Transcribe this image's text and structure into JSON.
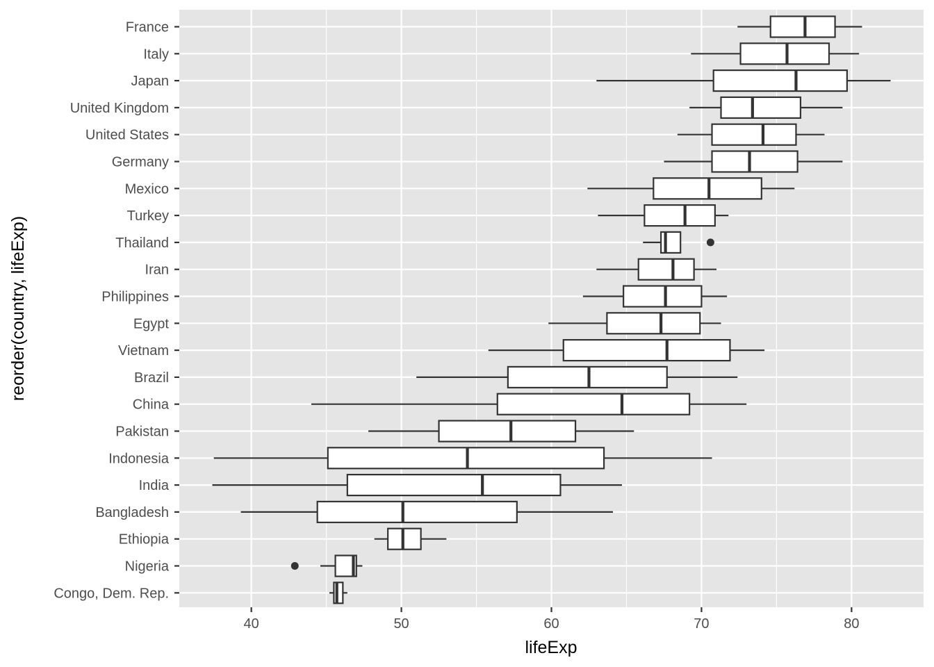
{
  "chart_data": {
    "type": "boxplot",
    "orientation": "horizontal",
    "xlabel": "lifeExp",
    "ylabel": "reorder(country, lifeExp)",
    "xlim": [
      35.2,
      84.8
    ],
    "xticks": [
      40,
      50,
      60,
      70,
      80
    ],
    "grid": true,
    "background": "#e5e5e5",
    "box_fill": "#ffffff",
    "line_color": "#333333",
    "grid_major_color": "#ffffff",
    "categories": [
      {
        "name": "France",
        "min": 72.4,
        "q1": 74.6,
        "median": 76.9,
        "q3": 78.9,
        "max": 80.7,
        "outliers": []
      },
      {
        "name": "Italy",
        "min": 69.3,
        "q1": 72.6,
        "median": 75.7,
        "q3": 78.5,
        "max": 80.5,
        "outliers": []
      },
      {
        "name": "Japan",
        "min": 63.0,
        "q1": 70.8,
        "median": 76.3,
        "q3": 79.7,
        "max": 82.6,
        "outliers": []
      },
      {
        "name": "United Kingdom",
        "min": 69.2,
        "q1": 71.3,
        "median": 73.4,
        "q3": 76.6,
        "max": 79.4,
        "outliers": []
      },
      {
        "name": "United States",
        "min": 68.4,
        "q1": 70.7,
        "median": 74.1,
        "q3": 76.3,
        "max": 78.2,
        "outliers": []
      },
      {
        "name": "Germany",
        "min": 67.5,
        "q1": 70.7,
        "median": 73.2,
        "q3": 76.4,
        "max": 79.4,
        "outliers": []
      },
      {
        "name": "Mexico",
        "min": 62.4,
        "q1": 66.8,
        "median": 70.5,
        "q3": 74.0,
        "max": 76.2,
        "outliers": []
      },
      {
        "name": "Turkey",
        "min": 63.1,
        "q1": 66.2,
        "median": 68.9,
        "q3": 70.9,
        "max": 71.8,
        "outliers": []
      },
      {
        "name": "Thailand",
        "min": 66.1,
        "q1": 67.3,
        "median": 67.6,
        "q3": 68.6,
        "max": 68.6,
        "outliers": [
          70.6
        ]
      },
      {
        "name": "Iran",
        "min": 63.0,
        "q1": 65.8,
        "median": 68.1,
        "q3": 69.5,
        "max": 71.0,
        "outliers": []
      },
      {
        "name": "Philippines",
        "min": 62.1,
        "q1": 64.8,
        "median": 67.6,
        "q3": 70.0,
        "max": 71.7,
        "outliers": []
      },
      {
        "name": "Egypt",
        "min": 59.8,
        "q1": 63.7,
        "median": 67.3,
        "q3": 69.9,
        "max": 71.3,
        "outliers": []
      },
      {
        "name": "Vietnam",
        "min": 55.8,
        "q1": 60.8,
        "median": 67.7,
        "q3": 71.9,
        "max": 74.2,
        "outliers": []
      },
      {
        "name": "Brazil",
        "min": 51.0,
        "q1": 57.1,
        "median": 62.5,
        "q3": 67.7,
        "max": 72.4,
        "outliers": []
      },
      {
        "name": "China",
        "min": 44.0,
        "q1": 56.4,
        "median": 64.7,
        "q3": 69.2,
        "max": 73.0,
        "outliers": []
      },
      {
        "name": "Pakistan",
        "min": 47.8,
        "q1": 52.5,
        "median": 57.3,
        "q3": 61.6,
        "max": 65.5,
        "outliers": []
      },
      {
        "name": "Indonesia",
        "min": 37.5,
        "q1": 45.1,
        "median": 54.4,
        "q3": 63.5,
        "max": 70.7,
        "outliers": []
      },
      {
        "name": "India",
        "min": 37.4,
        "q1": 46.4,
        "median": 55.4,
        "q3": 60.6,
        "max": 64.7,
        "outliers": []
      },
      {
        "name": "Bangladesh",
        "min": 39.3,
        "q1": 44.4,
        "median": 50.1,
        "q3": 57.7,
        "max": 64.1,
        "outliers": []
      },
      {
        "name": "Ethiopia",
        "min": 48.2,
        "q1": 49.1,
        "median": 50.1,
        "q3": 51.3,
        "max": 53.0,
        "outliers": []
      },
      {
        "name": "Nigeria",
        "min": 44.6,
        "q1": 45.6,
        "median": 46.8,
        "q3": 47.0,
        "max": 47.4,
        "outliers": [
          42.9
        ]
      },
      {
        "name": "Congo, Dem. Rep.",
        "min": 45.2,
        "q1": 45.5,
        "median": 45.7,
        "q3": 46.1,
        "max": 46.4,
        "outliers": []
      }
    ]
  }
}
